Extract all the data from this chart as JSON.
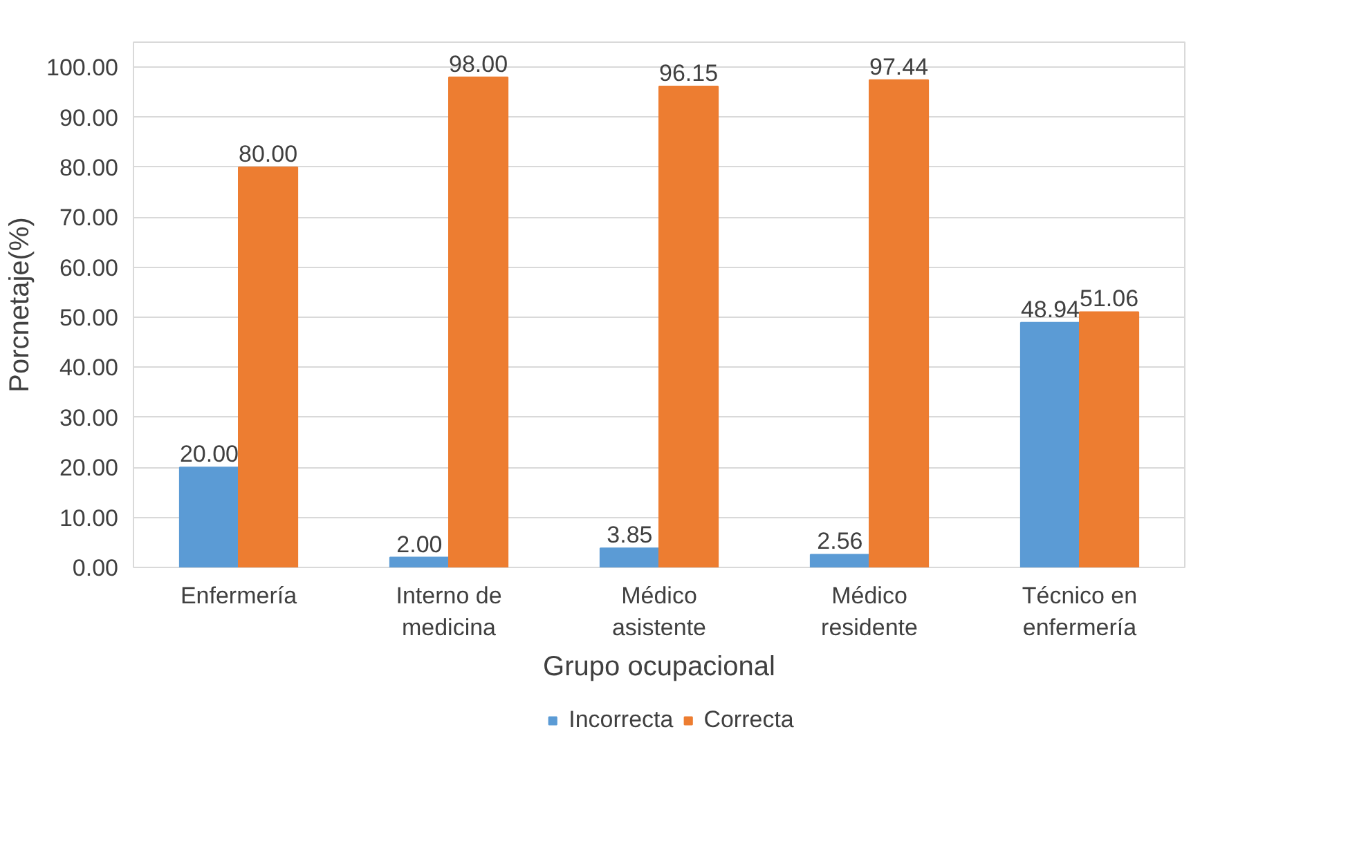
{
  "chart_data": {
    "type": "bar",
    "xlabel": "Grupo ocupacional",
    "ylabel": "Porcnetaje(%)",
    "categories": [
      "Enfermería",
      "Interno de medicina",
      "Médico asistente",
      "Médico residente",
      "Técnico en enfermería"
    ],
    "series": [
      {
        "name": "Incorrecta",
        "color": "#5b9bd5",
        "values": [
          20.0,
          2.0,
          3.85,
          2.56,
          48.94
        ],
        "value_labels": [
          "20.00",
          "2.00",
          "3.85",
          "2.56",
          "48.94"
        ]
      },
      {
        "name": "Correcta",
        "color": "#ed7d31",
        "values": [
          80.0,
          98.0,
          96.15,
          97.44,
          51.06
        ],
        "value_labels": [
          "80.00",
          "98.00",
          "96.15",
          "97.44",
          "51.06"
        ]
      }
    ],
    "ylim": [
      0,
      105
    ],
    "yticks": [
      {
        "value": 0,
        "label": "0.00"
      },
      {
        "value": 10,
        "label": "10.00"
      },
      {
        "value": 20,
        "label": "20.00"
      },
      {
        "value": 30,
        "label": "30.00"
      },
      {
        "value": 40,
        "label": "40.00"
      },
      {
        "value": 50,
        "label": "50.00"
      },
      {
        "value": 60,
        "label": "60.00"
      },
      {
        "value": 70,
        "label": "70.00"
      },
      {
        "value": 80,
        "label": "80.00"
      },
      {
        "value": 90,
        "label": "90.00"
      },
      {
        "value": 100,
        "label": "100.00"
      }
    ],
    "grid": "y",
    "legend": "bottom"
  }
}
